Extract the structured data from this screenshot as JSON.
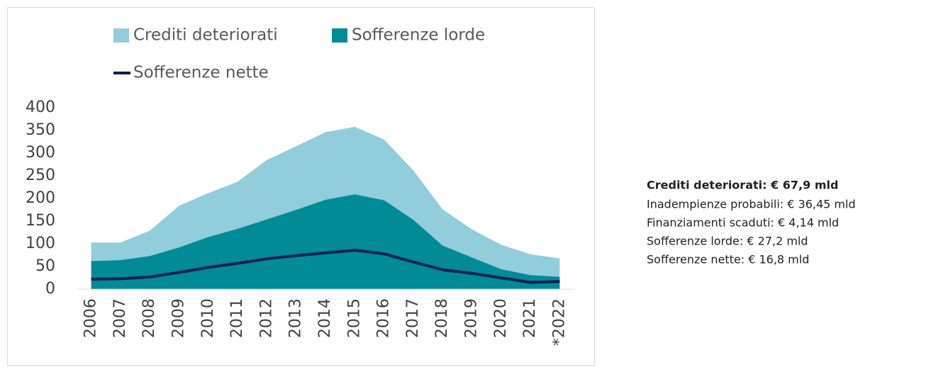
{
  "chart_data": {
    "type": "area",
    "categories": [
      "2006",
      "2007",
      "2008",
      "2009",
      "2010",
      "2011",
      "2012",
      "2013",
      "2014",
      "2015",
      "2016",
      "2017",
      "2018",
      "2019",
      "2020",
      "2021",
      "*2022"
    ],
    "series": [
      {
        "name": "Crediti deteriorati",
        "type": "area",
        "color": "#92cddc",
        "values": [
          103,
          103,
          129,
          184,
          212,
          237,
          285,
          315,
          346,
          358,
          330,
          262,
          176,
          132,
          98,
          77,
          67.9
        ]
      },
      {
        "name": "Sofferenze lorde",
        "type": "area",
        "color": "#008b96",
        "values": [
          62,
          64,
          73,
          92,
          115,
          133,
          154,
          175,
          197,
          209,
          196,
          153,
          96,
          70,
          44,
          31,
          27.2
        ]
      },
      {
        "name": "Sofferenze nette",
        "type": "line",
        "color": "#0b1f4f",
        "values": [
          22,
          23,
          27,
          37,
          48,
          57,
          67,
          74,
          80,
          86,
          78,
          60,
          43,
          35,
          25,
          15,
          16.8
        ]
      }
    ],
    "ylim": [
      0,
      400
    ],
    "yticks": [
      0,
      50,
      100,
      150,
      200,
      250,
      300,
      350,
      400
    ],
    "grid": false
  },
  "notes": {
    "heading": "Crediti deteriorati: € 67,9 mld",
    "lines": [
      "Inadempienze probabili: € 36,45 mld",
      "Finanziamenti scaduti: € 4,14 mld",
      "Sofferenze lorde: € 27,2 mld",
      "Sofferenze nette: € 16,8 mld"
    ]
  }
}
